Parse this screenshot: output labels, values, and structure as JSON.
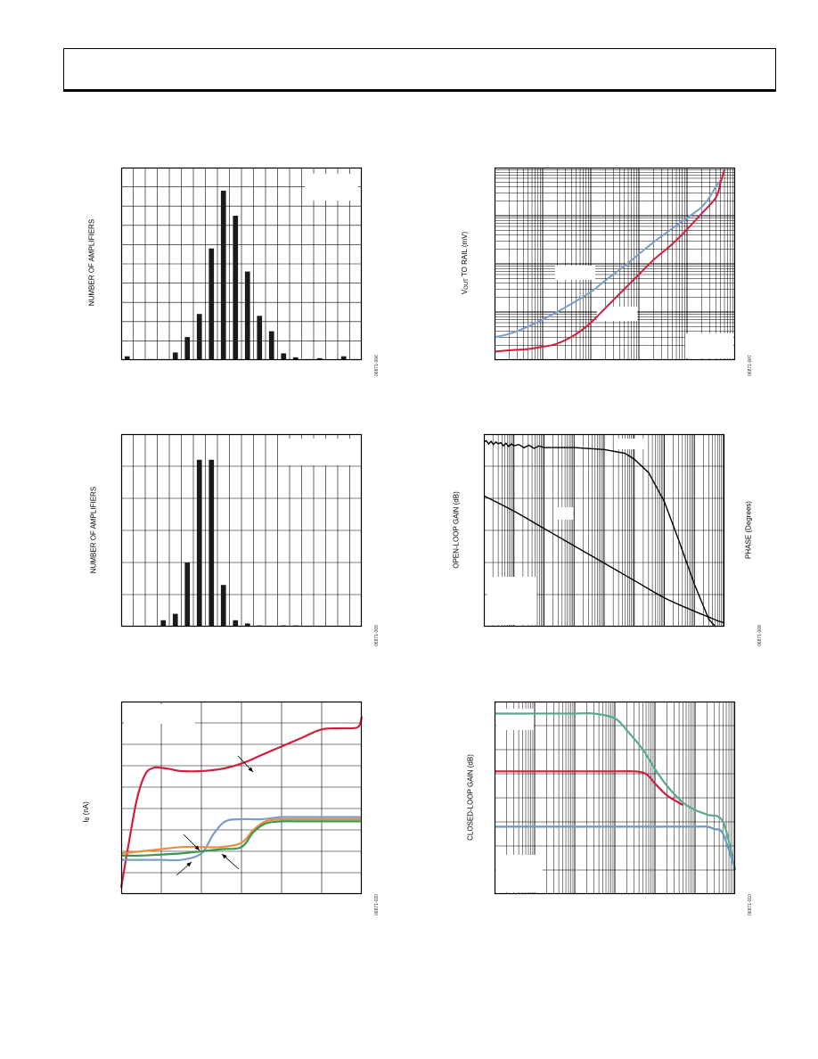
{
  "page": {
    "figure_ids": [
      "06871-006",
      "06871-007",
      "06871-009",
      "06871-008",
      "06871-020",
      "06871-010"
    ]
  },
  "chart_data": [
    {
      "id": "histogram-1",
      "type": "bar",
      "ylabel": "NUMBER OF AMPLIFIERS",
      "figure_id": "06871-006",
      "grid": true,
      "ylim": [
        0,
        10
      ],
      "x_divisions": 20,
      "x": [
        0.5,
        1.5,
        2.5,
        3.5,
        4.5,
        5.5,
        6.5,
        7.5,
        8.5,
        9.5,
        10.5,
        11.5,
        12.5,
        13.5,
        14.5,
        15.5,
        16.5,
        17.5,
        18.5,
        19.5
      ],
      "values": [
        0.2,
        0,
        0.05,
        0.05,
        0.4,
        1.2,
        2.4,
        5.8,
        8.8,
        7.5,
        4.6,
        2.3,
        1.5,
        0.35,
        0.15,
        0.05,
        0.1,
        0,
        0.2,
        0.05
      ],
      "legend_box": "top-right"
    },
    {
      "id": "vout-to-rail",
      "type": "line",
      "ylabel_main": "V",
      "ylabel_sub": "OUT",
      "ylabel_rest": " TO RAIL (mV)",
      "figure_id": "06871-007",
      "x_scale": "log",
      "y_scale": "log",
      "xlim": [
        0.001,
        100
      ],
      "ylim": [
        1,
        10000
      ],
      "series": [
        {
          "color": "#7a9ec9",
          "x": [
            0.001,
            0.002,
            0.005,
            0.01,
            0.02,
            0.05,
            0.1,
            0.2,
            0.5,
            1,
            2,
            5,
            10,
            20,
            30,
            40,
            50
          ],
          "y": [
            3,
            3.5,
            5,
            7,
            10,
            17,
            26,
            45,
            90,
            160,
            280,
            550,
            900,
            1500,
            2500,
            4000,
            5500
          ]
        },
        {
          "color": "#d21e3c",
          "x": [
            0.001,
            0.002,
            0.005,
            0.01,
            0.02,
            0.05,
            0.1,
            0.2,
            0.5,
            1,
            2,
            5,
            10,
            20,
            40,
            50,
            60
          ],
          "y": [
            1.5,
            1.6,
            1.7,
            1.9,
            2.2,
            3.5,
            6,
            12,
            30,
            60,
            120,
            260,
            520,
            1100,
            2400,
            5000,
            9000
          ]
        }
      ]
    },
    {
      "id": "histogram-2",
      "type": "bar",
      "ylabel": "NUMBER OF AMPLIFIERS",
      "figure_id": "06871-009",
      "grid": true,
      "ylim": [
        0,
        6
      ],
      "x_divisions": 20,
      "x": [
        3.5,
        4.5,
        5.5,
        6.5,
        7.5,
        8.5,
        9.5,
        10.5,
        11.5,
        12.5,
        13.5,
        14.5
      ],
      "values": [
        0.2,
        0.4,
        2,
        5.2,
        5.2,
        1.3,
        0.2,
        0.1,
        0.04,
        0.03,
        0.04,
        0.04
      ],
      "legend_box": "top-right"
    },
    {
      "id": "open-loop-gain",
      "type": "line",
      "ylabel": "OPEN-LOOP GAIN (dB)",
      "y2label": "PHASE (Degrees)",
      "figure_id": "06871-008",
      "x_scale": "log",
      "xlim": [
        1,
        100000000
      ],
      "ylim": [
        0,
        100
      ],
      "series": [
        {
          "name": "gain",
          "color": "#000000",
          "noise": true,
          "x": [
            1,
            3,
            10,
            100,
            1000,
            10000,
            50000,
            100000,
            300000,
            1000000,
            3000000,
            10000000,
            30000000,
            50000000
          ],
          "y": [
            96,
            95,
            94,
            93,
            93,
            92,
            90,
            87,
            80,
            65,
            45,
            22,
            4,
            0
          ]
        },
        {
          "name": "phase",
          "color": "#000000",
          "x": [
            1,
            10,
            100,
            1000,
            10000,
            100000,
            1000000,
            10000000,
            30000000,
            60000000,
            100000000
          ],
          "y": [
            68,
            60,
            51,
            42,
            33,
            24,
            15,
            8,
            5,
            3,
            2
          ]
        }
      ]
    },
    {
      "id": "input-bias-current",
      "type": "line",
      "ylabel_main": "I",
      "ylabel_sub": "B",
      "ylabel_rest": " (nA)",
      "figure_id": "06871-020",
      "xlim": [
        0,
        6
      ],
      "ylim": [
        0,
        9
      ],
      "x_divisions": 6,
      "y_divisions": 9,
      "series": [
        {
          "color": "#d21e3c",
          "x": [
            0,
            0.2,
            0.4,
            0.6,
            0.8,
            1,
            1.2,
            1.5,
            2,
            2.5,
            3,
            3.5,
            4,
            4.5,
            5,
            5.5,
            5.9,
            6
          ],
          "y": [
            0.3,
            2.5,
            4.5,
            5.6,
            5.9,
            5.9,
            5.85,
            5.75,
            5.75,
            5.85,
            6.1,
            6.5,
            6.9,
            7.3,
            7.7,
            7.75,
            7.8,
            8.3
          ]
        },
        {
          "color": "#7a9ec9",
          "x": [
            0,
            0.5,
            1,
            1.5,
            2,
            2.3,
            2.6,
            3,
            3.5,
            4,
            4.5,
            5,
            5.5,
            6
          ],
          "y": [
            1.6,
            1.6,
            1.6,
            1.6,
            1.9,
            2.8,
            3.4,
            3.5,
            3.5,
            3.6,
            3.6,
            3.6,
            3.6,
            3.6
          ]
        },
        {
          "color": "#f08c3c",
          "x": [
            0,
            0.5,
            1,
            1.5,
            2,
            2.5,
            3,
            3.3,
            3.6,
            4,
            4.5,
            5,
            5.5,
            6
          ],
          "y": [
            1.9,
            2.0,
            2.1,
            2.2,
            2.2,
            2.2,
            2.4,
            3.0,
            3.4,
            3.5,
            3.5,
            3.5,
            3.5,
            3.5
          ]
        },
        {
          "color": "#3c9650",
          "x": [
            0,
            0.5,
            1,
            1.5,
            2,
            2.5,
            3,
            3.3,
            3.6,
            4,
            4.5,
            5,
            5.5,
            6
          ],
          "y": [
            1.8,
            1.8,
            1.85,
            1.9,
            2.0,
            2.1,
            2.2,
            2.9,
            3.3,
            3.4,
            3.4,
            3.4,
            3.4,
            3.4
          ]
        }
      ]
    },
    {
      "id": "closed-loop-gain",
      "type": "line",
      "ylabel": "CLOSED-LOOP GAIN (dB)",
      "figure_id": "06871-010",
      "x_scale": "log",
      "xlim": [
        1000,
        1000000000
      ],
      "ylim": [
        -40,
        40
      ],
      "series": [
        {
          "color": "#5aaa8c",
          "x": [
            1000,
            10000,
            100000,
            300000,
            1000000,
            2000000,
            5000000,
            10000000,
            20000000,
            50000000,
            100000000,
            200000000,
            500000000,
            1000000000
          ],
          "y": [
            35,
            35,
            35,
            35,
            33,
            28,
            20,
            12,
            5,
            -2,
            -5,
            -7,
            -10,
            -30
          ]
        },
        {
          "color": "#d21e3c",
          "x": [
            1000,
            10000,
            100000,
            1000000,
            3000000,
            5000000,
            7000000,
            10000000,
            20000000,
            50000000
          ],
          "y": [
            11,
            11,
            11,
            11,
            11,
            10.5,
            9,
            6,
            1,
            -3
          ]
        },
        {
          "color": "#6e96c8",
          "x": [
            1000,
            10000,
            100000,
            1000000,
            10000000,
            30000000,
            50000000,
            100000000,
            200000000,
            300000000,
            500000000,
            1000000000
          ],
          "y": [
            -12,
            -12,
            -12,
            -12,
            -12,
            -12,
            -12,
            -12,
            -12,
            -13,
            -15,
            -30
          ]
        }
      ]
    }
  ]
}
